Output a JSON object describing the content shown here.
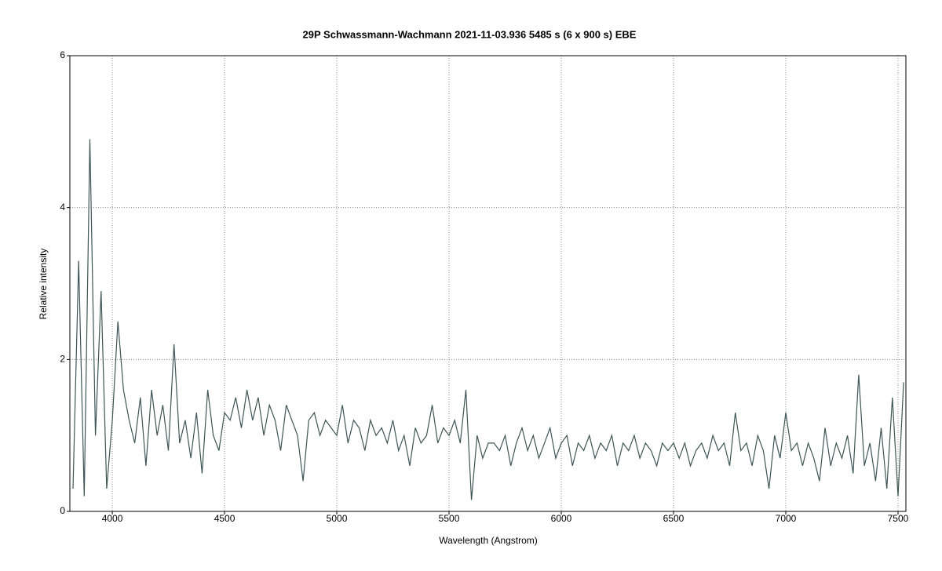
{
  "chart_data": {
    "type": "line",
    "title": "29P Schwassmann-Wachmann  2021-11-03.936  5485 s (6 x 900 s)  EBE",
    "xlabel": "Wavelength (Angstrom)",
    "ylabel": "Relative intensity",
    "xlim": [
      3811,
      7535
    ],
    "ylim": [
      0,
      6
    ],
    "xticks": [
      4000,
      4500,
      5000,
      5500,
      6000,
      6500,
      7000,
      7500
    ],
    "yticks": [
      0,
      2,
      4,
      6
    ],
    "grid": true,
    "x": [
      3825,
      3850,
      3875,
      3900,
      3925,
      3950,
      3975,
      4000,
      4025,
      4050,
      4075,
      4100,
      4125,
      4150,
      4175,
      4200,
      4225,
      4250,
      4275,
      4300,
      4325,
      4350,
      4375,
      4400,
      4425,
      4450,
      4475,
      4500,
      4525,
      4550,
      4575,
      4600,
      4625,
      4650,
      4675,
      4700,
      4725,
      4750,
      4775,
      4800,
      4825,
      4850,
      4875,
      4900,
      4925,
      4950,
      4975,
      5000,
      5025,
      5050,
      5075,
      5100,
      5125,
      5150,
      5175,
      5200,
      5225,
      5250,
      5275,
      5300,
      5325,
      5350,
      5375,
      5400,
      5425,
      5450,
      5475,
      5500,
      5525,
      5550,
      5575,
      5600,
      5625,
      5650,
      5675,
      5700,
      5725,
      5750,
      5775,
      5800,
      5825,
      5850,
      5875,
      5900,
      5925,
      5950,
      5975,
      6000,
      6025,
      6050,
      6075,
      6100,
      6125,
      6150,
      6175,
      6200,
      6225,
      6250,
      6275,
      6300,
      6325,
      6350,
      6375,
      6400,
      6425,
      6450,
      6475,
      6500,
      6525,
      6550,
      6575,
      6600,
      6625,
      6650,
      6675,
      6700,
      6725,
      6750,
      6775,
      6800,
      6825,
      6850,
      6875,
      6900,
      6925,
      6950,
      6975,
      7000,
      7025,
      7050,
      7075,
      7100,
      7125,
      7150,
      7175,
      7200,
      7225,
      7250,
      7275,
      7300,
      7325,
      7350,
      7375,
      7400,
      7425,
      7450,
      7475,
      7500,
      7525
    ],
    "series": [
      {
        "color": "#3d5556",
        "values": [
          0.3,
          3.3,
          0.2,
          4.9,
          1.0,
          2.9,
          0.3,
          1.2,
          2.5,
          1.6,
          1.2,
          0.9,
          1.5,
          0.6,
          1.6,
          1.0,
          1.4,
          0.8,
          2.2,
          0.9,
          1.2,
          0.7,
          1.3,
          0.5,
          1.6,
          1.0,
          0.8,
          1.3,
          1.2,
          1.5,
          1.1,
          1.6,
          1.2,
          1.5,
          1.0,
          1.4,
          1.2,
          0.8,
          1.4,
          1.2,
          1.0,
          0.4,
          1.2,
          1.3,
          1.0,
          1.2,
          1.1,
          1.0,
          1.4,
          0.9,
          1.2,
          1.1,
          0.8,
          1.2,
          1.0,
          1.1,
          0.9,
          1.2,
          0.8,
          1.0,
          0.6,
          1.1,
          0.9,
          1.0,
          1.4,
          0.9,
          1.1,
          1.0,
          1.2,
          0.9,
          1.6,
          0.15,
          1.0,
          0.7,
          0.9,
          0.9,
          0.8,
          1.0,
          0.6,
          0.9,
          1.1,
          0.8,
          1.0,
          0.7,
          0.9,
          1.1,
          0.7,
          0.9,
          1.0,
          0.6,
          0.9,
          0.8,
          1.0,
          0.7,
          0.9,
          0.8,
          1.0,
          0.6,
          0.9,
          0.8,
          1.0,
          0.7,
          0.9,
          0.8,
          0.6,
          0.9,
          0.8,
          0.9,
          0.7,
          0.9,
          0.6,
          0.8,
          0.9,
          0.7,
          1.0,
          0.8,
          0.9,
          0.6,
          1.3,
          0.8,
          0.9,
          0.6,
          1.0,
          0.8,
          0.3,
          1.0,
          0.7,
          1.3,
          0.8,
          0.9,
          0.6,
          0.9,
          0.7,
          0.4,
          1.1,
          0.6,
          0.9,
          0.7,
          1.0,
          0.5,
          1.8,
          0.6,
          0.9,
          0.4,
          1.1,
          0.3,
          1.5,
          0.2,
          1.7
        ]
      }
    ]
  }
}
